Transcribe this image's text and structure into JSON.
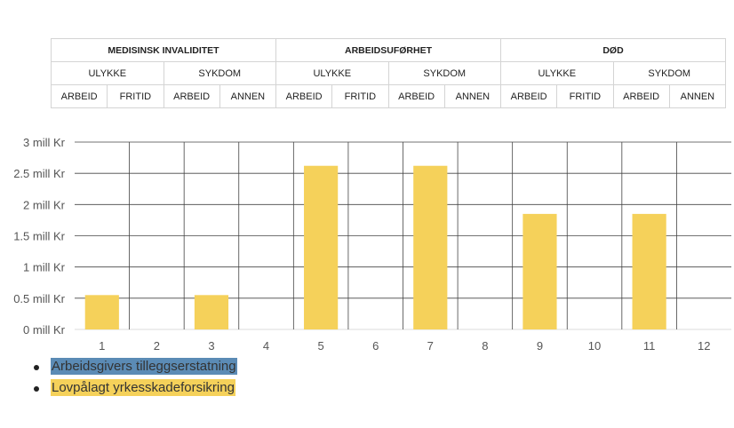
{
  "header": {
    "groups": [
      {
        "label": "MEDISINSK INVALIDITET"
      },
      {
        "label": "ARBEIDSUFØRHET"
      },
      {
        "label": "DØD"
      }
    ],
    "subgroups": [
      "ULYKKE",
      "SYKDOM",
      "ULYKKE",
      "SYKDOM",
      "ULYKKE",
      "SYKDOM"
    ],
    "leaves": [
      "ARBEID",
      "FRITID",
      "ARBEID",
      "ANNEN",
      "ARBEID",
      "FRITID",
      "ARBEID",
      "ANNEN",
      "ARBEID",
      "FRITID",
      "ARBEID",
      "ANNEN"
    ]
  },
  "chart_data": {
    "type": "bar",
    "categories": [
      "1",
      "2",
      "3",
      "4",
      "5",
      "6",
      "7",
      "8",
      "9",
      "10",
      "11",
      "12"
    ],
    "series": [
      {
        "name": "Arbeidsgivers tilleggserstatning",
        "color": "#5b8bb5",
        "values": [
          0,
          0,
          0,
          0,
          0,
          0,
          0,
          0,
          0,
          0,
          0,
          0
        ]
      },
      {
        "name": "Lovpålagt yrkesskadeforsikring",
        "color": "#f5d15a",
        "values": [
          0.55,
          0,
          0.55,
          0,
          2.62,
          0,
          2.62,
          0,
          1.85,
          0,
          1.85,
          0
        ]
      }
    ],
    "ylim": [
      0,
      3
    ],
    "yticks": [
      0,
      0.5,
      1,
      1.5,
      2,
      2.5,
      3
    ],
    "ytick_labels": [
      "0 mill Kr",
      "0.5 mill Kr",
      "1 mill Kr",
      "1.5 mill Kr",
      "2 mill Kr",
      "2.5 mill Kr",
      "3 mill Kr"
    ],
    "grid": true
  },
  "legend": {
    "items": [
      {
        "label": "Arbeidsgivers tilleggserstatning",
        "color": "#5b8bb5"
      },
      {
        "label": "Lovpålagt yrkesskadeforsikring",
        "color": "#f5d15a"
      }
    ]
  }
}
